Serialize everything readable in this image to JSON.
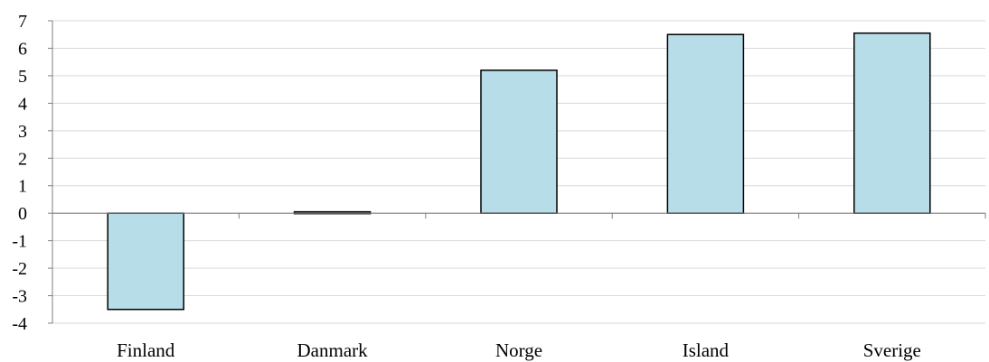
{
  "chart_data": {
    "type": "bar",
    "title": "",
    "xlabel": "",
    "ylabel": "",
    "categories": [
      "Finland",
      "Danmark",
      "Norge",
      "Island",
      "Sverige"
    ],
    "values": [
      -3.5,
      0.05,
      5.2,
      6.5,
      6.55
    ],
    "ylim": [
      -4,
      7
    ],
    "yticks": [
      7,
      6,
      5,
      4,
      3,
      2,
      1,
      0,
      -1,
      -2,
      -3,
      -4
    ],
    "grid": true,
    "legend": "none",
    "colors": {
      "bar_fill": "#b7dde8",
      "bar_stroke": "#000000",
      "grid": "#d9d9d9",
      "axis": "#7f7f7f"
    }
  }
}
